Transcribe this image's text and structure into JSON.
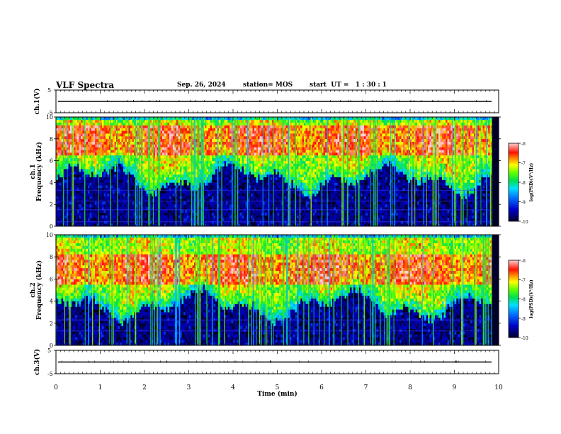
{
  "header": {
    "title": "VLF Spectra",
    "date": "Sep. 26, 2024",
    "station": "station= MOS",
    "start_ut": "start  UT =   1 : 30 : 1"
  },
  "colors": {
    "spectro_cmap": [
      "#00002a",
      "#0000b4",
      "#0050ff",
      "#00d0ff",
      "#00e070",
      "#40ff00",
      "#c0ff00",
      "#ffff00",
      "#ffa000",
      "#ff2000",
      "#ffc0c0"
    ]
  },
  "chart_data": [
    {
      "type": "line",
      "panel": "ch1-voltage",
      "ylabel": "ch.1(V)",
      "ylim": [
        -5,
        5
      ],
      "yticks": [
        "5",
        "-5"
      ],
      "trace_level": 0,
      "xlim": [
        0,
        10
      ]
    },
    {
      "type": "heatmap",
      "panel": "ch1-spectrogram",
      "ylabel": "ch.1\nFrequency (kHz)",
      "ylabel_channel": "ch.1",
      "ylabel_axis": "Frequency (kHz)",
      "ylim": [
        0,
        10
      ],
      "yticks": [
        "0",
        "2",
        "4",
        "6",
        "8",
        "10"
      ],
      "xlim": [
        0,
        10
      ],
      "data_end_min": 9.85,
      "colorbar": {
        "label": "log(PSD)(V²/Hz)",
        "range": [
          -10,
          -6
        ],
        "ticks": [
          "-6",
          "-7",
          "-8",
          "-9",
          "-10"
        ]
      },
      "emission_band_khz": [
        4.2,
        10
      ],
      "peak_band_khz": [
        6.5,
        9
      ],
      "horizontal_lines_khz": [
        0.4,
        1.5,
        2.3,
        3.3
      ]
    },
    {
      "type": "heatmap",
      "panel": "ch2-spectrogram",
      "ylabel": "ch.2\nFrequency (kHz)",
      "ylabel_channel": "ch.2",
      "ylabel_axis": "Frequency (kHz)",
      "ylim": [
        0,
        10
      ],
      "yticks": [
        "0",
        "2",
        "4",
        "6",
        "8",
        "10"
      ],
      "xlim": [
        0,
        10
      ],
      "data_end_min": 9.85,
      "colorbar": {
        "label": "log(PSD)(V²/Hz)",
        "range": [
          -10,
          -6
        ],
        "ticks": [
          "-6",
          "-7",
          "-8",
          "-9",
          "-10"
        ]
      },
      "emission_band_khz": [
        3.5,
        10
      ],
      "peak_band_khz": [
        5.5,
        8
      ],
      "horizontal_lines_khz": [
        1.3,
        2.3
      ]
    },
    {
      "type": "line",
      "panel": "ch3-voltage",
      "ylabel": "ch.3(V)",
      "ylim": [
        -5,
        5
      ],
      "yticks": [
        "5",
        "-5"
      ],
      "trace_level": 0,
      "xlim": [
        0,
        10
      ],
      "xlabel": "Time  (min)",
      "xticks": [
        "0",
        "1",
        "2",
        "3",
        "4",
        "5",
        "6",
        "7",
        "8",
        "9",
        "10"
      ]
    }
  ]
}
